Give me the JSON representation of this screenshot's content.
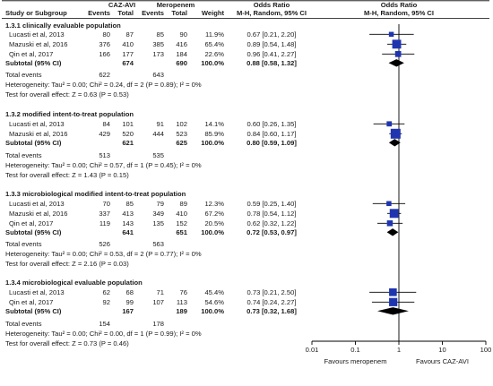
{
  "chart_data": {
    "type": "forest",
    "header": {
      "group1": "CAZ-AVI",
      "group2": "Meropenem",
      "or_col": "Odds Ratio",
      "or_plot": "Odds Ratio",
      "study": "Study or Subgroup",
      "events": "Events",
      "total": "Total",
      "weight": "Weight",
      "method_col": "M-H, Random, 95% CI",
      "method_plot": "M-H, Random, 95% CI"
    },
    "x_axis": {
      "scale": "log",
      "range": [
        0.01,
        100
      ],
      "ticks": [
        "0.01",
        "0.1",
        "1",
        "10",
        "100"
      ],
      "label_left": "Favours meropenem",
      "label_right": "Favours CAZ-AVI"
    },
    "subgroups": [
      {
        "title": "1.3.1 clinically evaluable population",
        "studies": [
          {
            "name": "Lucasti et al, 2013",
            "e1": "80",
            "n1": "87",
            "e2": "85",
            "n2": "90",
            "weight": "11.9%",
            "or_text": "0.67 [0.21, 2.20]",
            "or": 0.67,
            "lo": 0.21,
            "hi": 2.2
          },
          {
            "name": "Mazuski et al, 2016",
            "e1": "376",
            "n1": "410",
            "e2": "385",
            "n2": "416",
            "weight": "65.4%",
            "or_text": "0.89 [0.54, 1.48]",
            "or": 0.89,
            "lo": 0.54,
            "hi": 1.48
          },
          {
            "name": "Qin et al, 2017",
            "e1": "166",
            "n1": "177",
            "e2": "173",
            "n2": "184",
            "weight": "22.6%",
            "or_text": "0.96 [0.41, 2.27]",
            "or": 0.96,
            "lo": 0.41,
            "hi": 2.27
          }
        ],
        "subtotal": {
          "label": "Subtotal (95% CI)",
          "n1": "674",
          "n2": "690",
          "weight": "100.0%",
          "or_text": "0.88 [0.58, 1.32]",
          "or": 0.88,
          "lo": 0.58,
          "hi": 1.32
        },
        "events": {
          "label": "Total events",
          "e1": "622",
          "e2": "643"
        },
        "het": "Heterogeneity: Tau² = 0.00; Chi² = 0.24, df = 2 (P = 0.89); I² = 0%",
        "test": "Test for overall effect: Z = 0.63 (P = 0.53)"
      },
      {
        "title": "1.3.2 modified intent-to-treat population",
        "studies": [
          {
            "name": "Lucasti et al, 2013",
            "e1": "84",
            "n1": "101",
            "e2": "91",
            "n2": "102",
            "weight": "14.1%",
            "or_text": "0.60 [0.26, 1.35]",
            "or": 0.6,
            "lo": 0.26,
            "hi": 1.35
          },
          {
            "name": "Mazuski et al, 2016",
            "e1": "429",
            "n1": "520",
            "e2": "444",
            "n2": "523",
            "weight": "85.9%",
            "or_text": "0.84 [0.60, 1.17]",
            "or": 0.84,
            "lo": 0.6,
            "hi": 1.17
          }
        ],
        "subtotal": {
          "label": "Subtotal (95% CI)",
          "n1": "621",
          "n2": "625",
          "weight": "100.0%",
          "or_text": "0.80 [0.59, 1.09]",
          "or": 0.8,
          "lo": 0.59,
          "hi": 1.09
        },
        "events": {
          "label": "Total events",
          "e1": "513",
          "e2": "535"
        },
        "het": "Heterogeneity: Tau² = 0.00; Chi² = 0.57, df = 1 (P = 0.45); I² = 0%",
        "test": "Test for overall effect: Z = 1.43 (P = 0.15)"
      },
      {
        "title": "1.3.3 microbiological modified intent-to-treat population",
        "studies": [
          {
            "name": "Lucasti et al, 2013",
            "e1": "70",
            "n1": "85",
            "e2": "79",
            "n2": "89",
            "weight": "12.3%",
            "or_text": "0.59 [0.25, 1.40]",
            "or": 0.59,
            "lo": 0.25,
            "hi": 1.4
          },
          {
            "name": "Mazuski et al, 2016",
            "e1": "337",
            "n1": "413",
            "e2": "349",
            "n2": "410",
            "weight": "67.2%",
            "or_text": "0.78 [0.54, 1.12]",
            "or": 0.78,
            "lo": 0.54,
            "hi": 1.12
          },
          {
            "name": "Qin et al, 2017",
            "e1": "119",
            "n1": "143",
            "e2": "135",
            "n2": "152",
            "weight": "20.5%",
            "or_text": "0.62 [0.32, 1.22]",
            "or": 0.62,
            "lo": 0.32,
            "hi": 1.22
          }
        ],
        "subtotal": {
          "label": "Subtotal (95% CI)",
          "n1": "641",
          "n2": "651",
          "weight": "100.0%",
          "or_text": "0.72 [0.53, 0.97]",
          "or": 0.72,
          "lo": 0.53,
          "hi": 0.97
        },
        "events": {
          "label": "Total events",
          "e1": "526",
          "e2": "563"
        },
        "het": "Heterogeneity: Tau² = 0.00; Chi² = 0.53, df = 2 (P = 0.77); I² = 0%",
        "test": "Test for overall effect: Z = 2.16 (P = 0.03)"
      },
      {
        "title": "1.3.4 microbiological evaluable population",
        "studies": [
          {
            "name": "Lucasti et al, 2013",
            "e1": "62",
            "n1": "68",
            "e2": "71",
            "n2": "76",
            "weight": "45.4%",
            "or_text": "0.73 [0.21, 2.50]",
            "or": 0.73,
            "lo": 0.21,
            "hi": 2.5
          },
          {
            "name": "Qin et al, 2017",
            "e1": "92",
            "n1": "99",
            "e2": "107",
            "n2": "113",
            "weight": "54.6%",
            "or_text": "0.74 [0.24, 2.27]",
            "or": 0.74,
            "lo": 0.24,
            "hi": 2.27
          }
        ],
        "subtotal": {
          "label": "Subtotal (95% CI)",
          "n1": "167",
          "n2": "189",
          "weight": "100.0%",
          "or_text": "0.73 [0.32, 1.68]",
          "or": 0.73,
          "lo": 0.32,
          "hi": 1.68
        },
        "events": {
          "label": "Total events",
          "e1": "154",
          "e2": "178"
        },
        "het": "Heterogeneity: Tau² = 0.00; Chi² = 0.00, df = 1 (P = 0.99); I² = 0%",
        "test": "Test for overall effect: Z = 0.73 (P = 0.46)"
      }
    ],
    "colors": {
      "square": "#1f35b0",
      "diamond": "#000000",
      "line": "#000000"
    }
  }
}
